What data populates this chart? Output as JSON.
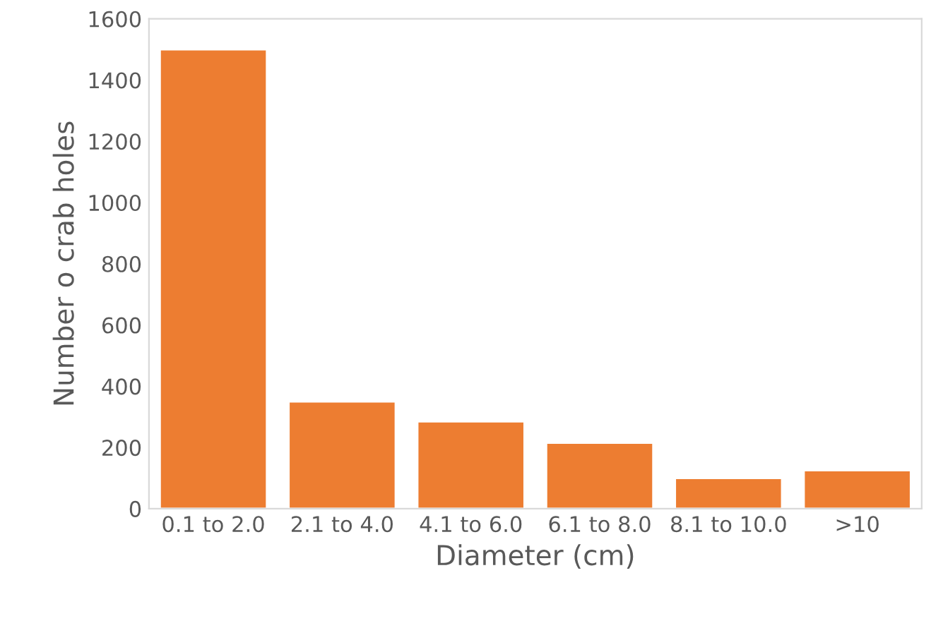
{
  "chart_data": {
    "type": "bar",
    "xlabel": "Diameter (cm)",
    "ylabel": "Number o crab holes",
    "categories": [
      "0.1 to 2.0",
      "2.1 to 4.0",
      "4.1 to 6.0",
      "6.1 to 8.0",
      "8.1 to 10.0",
      ">10"
    ],
    "values": [
      1500,
      350,
      285,
      215,
      100,
      125
    ],
    "color": "#ed7d31",
    "ylim": [
      0,
      1600
    ],
    "yticks": [
      0,
      200,
      400,
      600,
      800,
      1000,
      1200,
      1400,
      1600
    ],
    "grid": false
  }
}
